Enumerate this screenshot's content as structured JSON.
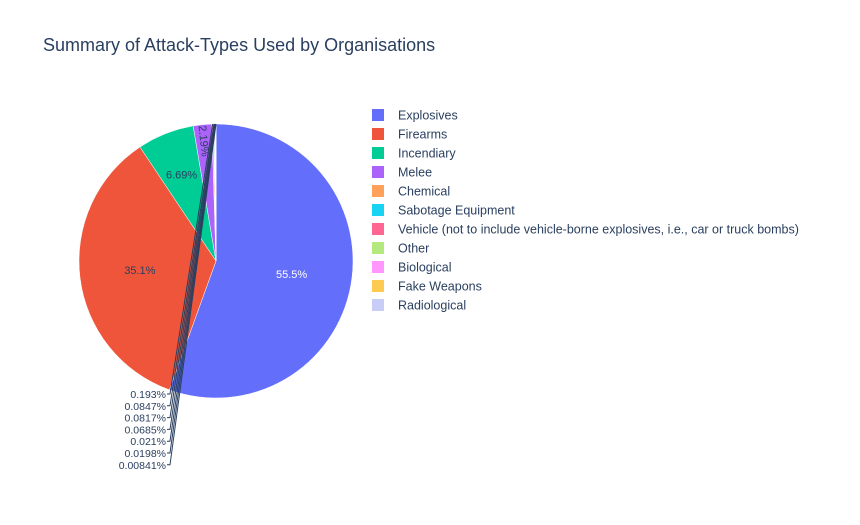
{
  "chart_data": {
    "type": "pie",
    "title": "Summary of Attack-Types Used by Organisations",
    "legend_position": "right",
    "labels": [
      "Explosives",
      "Firearms",
      "Incendiary",
      "Melee",
      "Chemical",
      "Sabotage Equipment",
      "Vehicle (not to include vehicle-borne explosives, i.e., car or truck bombs)",
      "Other",
      "Biological",
      "Fake Weapons",
      "Radiological"
    ],
    "values": [
      55.5,
      35.1,
      6.69,
      2.19,
      0.193,
      0.0847,
      0.0817,
      0.0685,
      0.021,
      0.0198,
      0.00841
    ],
    "value_labels": [
      "55.5%",
      "35.1%",
      "6.69%",
      "2.19%",
      "0.193%",
      "0.0847%",
      "0.0817%",
      "0.0685%",
      "0.021%",
      "0.0198%",
      "0.00841%"
    ],
    "colors": [
      "#636efa",
      "#EF553B",
      "#00cc96",
      "#ab63fa",
      "#FFA15A",
      "#19d3f3",
      "#FF6692",
      "#B6E880",
      "#FF97FF",
      "#FECB52",
      "#c8cdf8"
    ],
    "label_text_colors": [
      "#ffffff",
      "#2a3f5f",
      "#2a3f5f",
      "#2a3f5f",
      "#2a3f5f",
      "#2a3f5f",
      "#2a3f5f",
      "#2a3f5f",
      "#2a3f5f",
      "#2a3f5f",
      "#2a3f5f"
    ]
  }
}
